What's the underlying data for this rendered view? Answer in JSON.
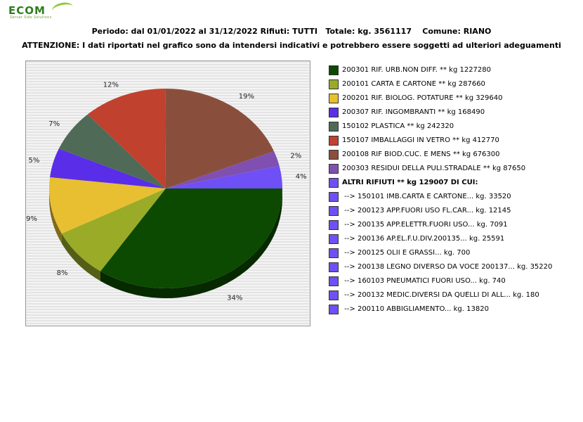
{
  "header": {
    "logo_text": "ECOM",
    "logo_sub": "Server Side Solutions",
    "line1_a": "Periodo: dal 01/01/2022 al 31/12/2022 Rifiuti: TUTTI",
    "line1_b": "Totale: kg. 3561117",
    "line1_c": "Comune: RIANO",
    "line2": "ATTENZIONE: I dati riportati nel grafico sono da intendersi indicativi e potrebbero essere soggetti ad ulteriori adeguamenti"
  },
  "chart_data": {
    "type": "pie",
    "slices": [
      {
        "label": "200301 RIF. URB.NON DIFF. ** kg 1227280",
        "value": 1227280,
        "pct_label": "34%",
        "color": "#0b4a00"
      },
      {
        "label": "200101 CARTA E CARTONE ** kg 287660",
        "value": 287660,
        "pct_label": "8%",
        "color": "#9aab28"
      },
      {
        "label": "200201 RIF. BIOLOG. POTATURE ** kg 329640",
        "value": 329640,
        "pct_label": "9%",
        "color": "#e8bf30"
      },
      {
        "label": "200307 RIF. INGOMBRANTI ** kg 168490",
        "value": 168490,
        "pct_label": "5%",
        "color": "#5a2de8"
      },
      {
        "label": "150102 PLASTICA ** kg 242320",
        "value": 242320,
        "pct_label": "7%",
        "color": "#4f6b58"
      },
      {
        "label": "150107 IMBALLAGGI IN VETRO ** kg 412770",
        "value": 412770,
        "pct_label": "12%",
        "color": "#c0412e"
      },
      {
        "label": "200108 RIF BIOD.CUC. E MENS ** kg 676300",
        "value": 676300,
        "pct_label": "19%",
        "color": "#8a4f3c"
      },
      {
        "label": "200303 RESIDUI DELLA PULI.STRADALE ** kg 87650",
        "value": 87650,
        "pct_label": "2%",
        "color": "#8050b0"
      },
      {
        "label": "ALTRI RIFIUTI ** kg 129007 DI CUI:",
        "value": 129007,
        "pct_label": "4%",
        "color": "#6f4ff6"
      }
    ],
    "sub_items": [
      {
        "label": "-->  150101 IMB.CARTA E CARTONE... kg. 33520",
        "color": "#6f4ff6"
      },
      {
        "label": "-->  200123 APP.FUORI USO FL.CAR... kg. 12145",
        "color": "#6f4ff6"
      },
      {
        "label": "-->  200135 APP.ELETTR.FUORI USO... kg. 7091",
        "color": "#6f4ff6"
      },
      {
        "label": "-->  200136 AP.EL.F.U.DIV.200135... kg. 25591",
        "color": "#6f4ff6"
      },
      {
        "label": "-->  200125 OLII E GRASSI... kg. 700",
        "color": "#6f4ff6"
      },
      {
        "label": "-->  200138 LEGNO DIVERSO DA VOCE 200137... kg. 35220",
        "color": "#6f4ff6"
      },
      {
        "label": "-->  160103 PNEUMATICI FUORI USO... kg. 740",
        "color": "#6f4ff6"
      },
      {
        "label": "-->  200132 MEDIC.DIVERSI DA QUELLI DI ALL... kg. 180",
        "color": "#6f4ff6"
      },
      {
        "label": "-->  200110 ABBIGLIAMENTO... kg. 13820",
        "color": "#6f4ff6"
      }
    ],
    "legend_position": "right",
    "style": "3d-pie"
  }
}
